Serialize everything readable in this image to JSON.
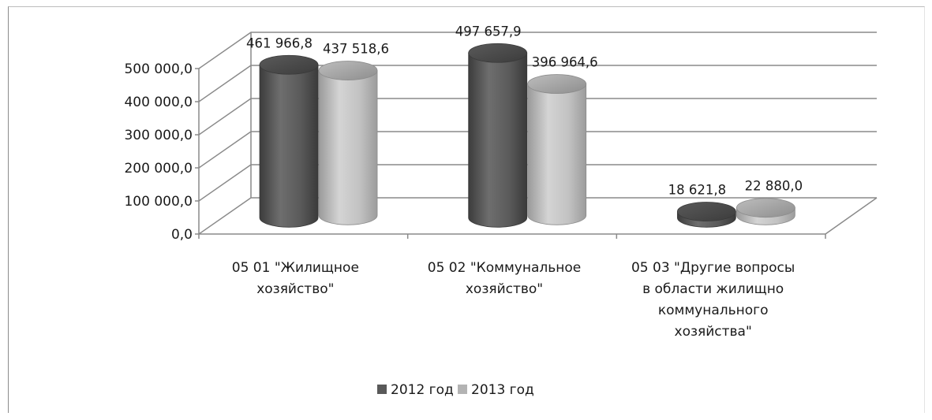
{
  "chart_data": {
    "type": "bar",
    "style": "3d-cylinder",
    "categories": [
      "05 01 \"Жилищное хозяйство\"",
      "05 02 \"Коммунальное хозяйство\"",
      "05 03 \"Другие вопросы в области жилищно коммунального хозяйства\""
    ],
    "category_label_lines": [
      [
        "05 01 \"Жилищное",
        "хозяйство\""
      ],
      [
        "05 02 \"Коммунальное",
        "хозяйство\""
      ],
      [
        "05 03 \"Другие вопросы",
        "в области жилищно",
        "коммунального",
        "хозяйства\""
      ]
    ],
    "series": [
      {
        "name": "2012 год",
        "values": [
          461966.8,
          497657.9,
          18621.8
        ],
        "labels": [
          "461 966,8",
          "497 657,9",
          "18 621,8"
        ],
        "color": "#595959"
      },
      {
        "name": "2013 год",
        "values": [
          437518.6,
          396964.6,
          22880.0
        ],
        "labels": [
          "437 518,6",
          "396 964,6",
          "22 880,0"
        ],
        "color": "#b3b3b3"
      }
    ],
    "y_ticks": [
      0,
      100000,
      200000,
      300000,
      400000,
      500000
    ],
    "y_tick_labels": [
      "0,0",
      "100 000,0",
      "200 000,0",
      "300 000,0",
      "400 000,0",
      "500 000,0"
    ],
    "ylim": [
      0,
      500000
    ],
    "grid": true,
    "legend_position": "bottom"
  }
}
